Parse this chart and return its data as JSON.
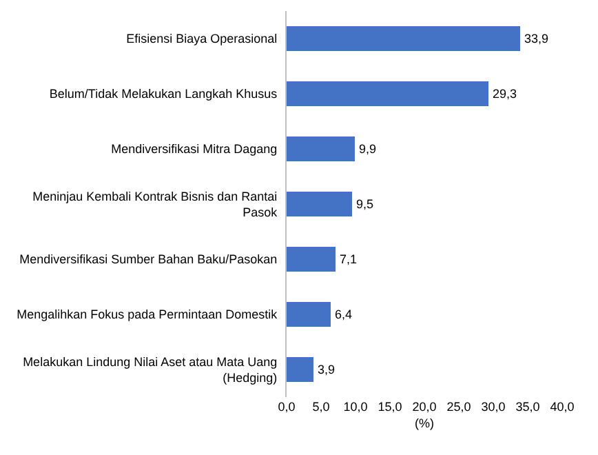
{
  "chart_data": {
    "type": "bar",
    "orientation": "horizontal",
    "xlabel": "(%)",
    "categories": [
      "Efisiensi Biaya Operasional",
      "Belum/Tidak Melakukan Langkah Khusus",
      "Mendiversifikasi Mitra Dagang",
      "Meninjau Kembali Kontrak Bisnis dan Rantai Pasok",
      "Mendiversifikasi Sumber Bahan Baku/Pasokan",
      "Mengalihkan Fokus pada Permintaan Domestik",
      "Melakukan Lindung Nilai Aset atau Mata Uang (Hedging)"
    ],
    "values": [
      33.9,
      29.3,
      9.9,
      9.5,
      7.1,
      6.4,
      3.9
    ],
    "value_labels": [
      "33,9",
      "29,3",
      "9,9",
      "9,5",
      "7,1",
      "6,4",
      "3,9"
    ],
    "color": "#4472c4",
    "xlim": [
      0,
      40
    ],
    "xticks": [
      {
        "value": 0,
        "label": "0,0"
      },
      {
        "value": 5,
        "label": "5,0"
      },
      {
        "value": 10,
        "label": "10,0"
      },
      {
        "value": 15,
        "label": "15,0"
      },
      {
        "value": 20,
        "label": "20,0"
      },
      {
        "value": 25,
        "label": "25,0"
      },
      {
        "value": 30,
        "label": "30,0"
      },
      {
        "value": 35,
        "label": "35,0"
      },
      {
        "value": 40,
        "label": "40,0"
      }
    ]
  }
}
